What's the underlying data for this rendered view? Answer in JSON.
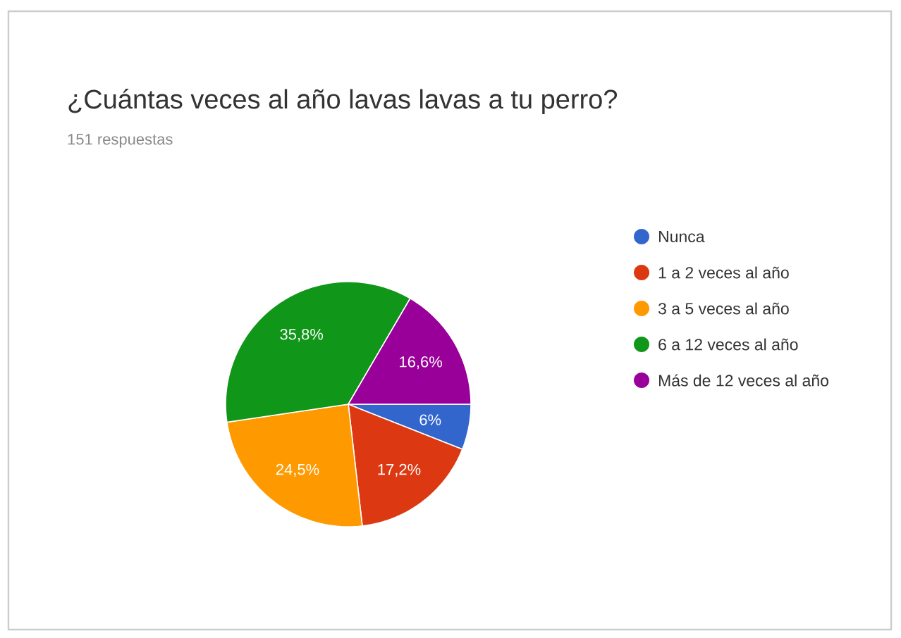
{
  "chart_data": {
    "type": "pie",
    "title": "¿Cuántas veces al año lavas lavas a tu perro?",
    "subtitle": "151 respuestas",
    "categories": [
      "Nunca",
      "1 a 2 veces al año",
      "3 a 5 veces al año",
      "6 a 12 veces al año",
      "Más de 12 veces al año"
    ],
    "values": [
      6,
      17.2,
      24.5,
      35.8,
      16.6
    ],
    "value_labels": [
      "6%",
      "17,2%",
      "24,5%",
      "35,8%",
      "16,6%"
    ],
    "colors": [
      "#3366cc",
      "#dc3912",
      "#ff9900",
      "#109618",
      "#990099"
    ],
    "legend": "right"
  }
}
